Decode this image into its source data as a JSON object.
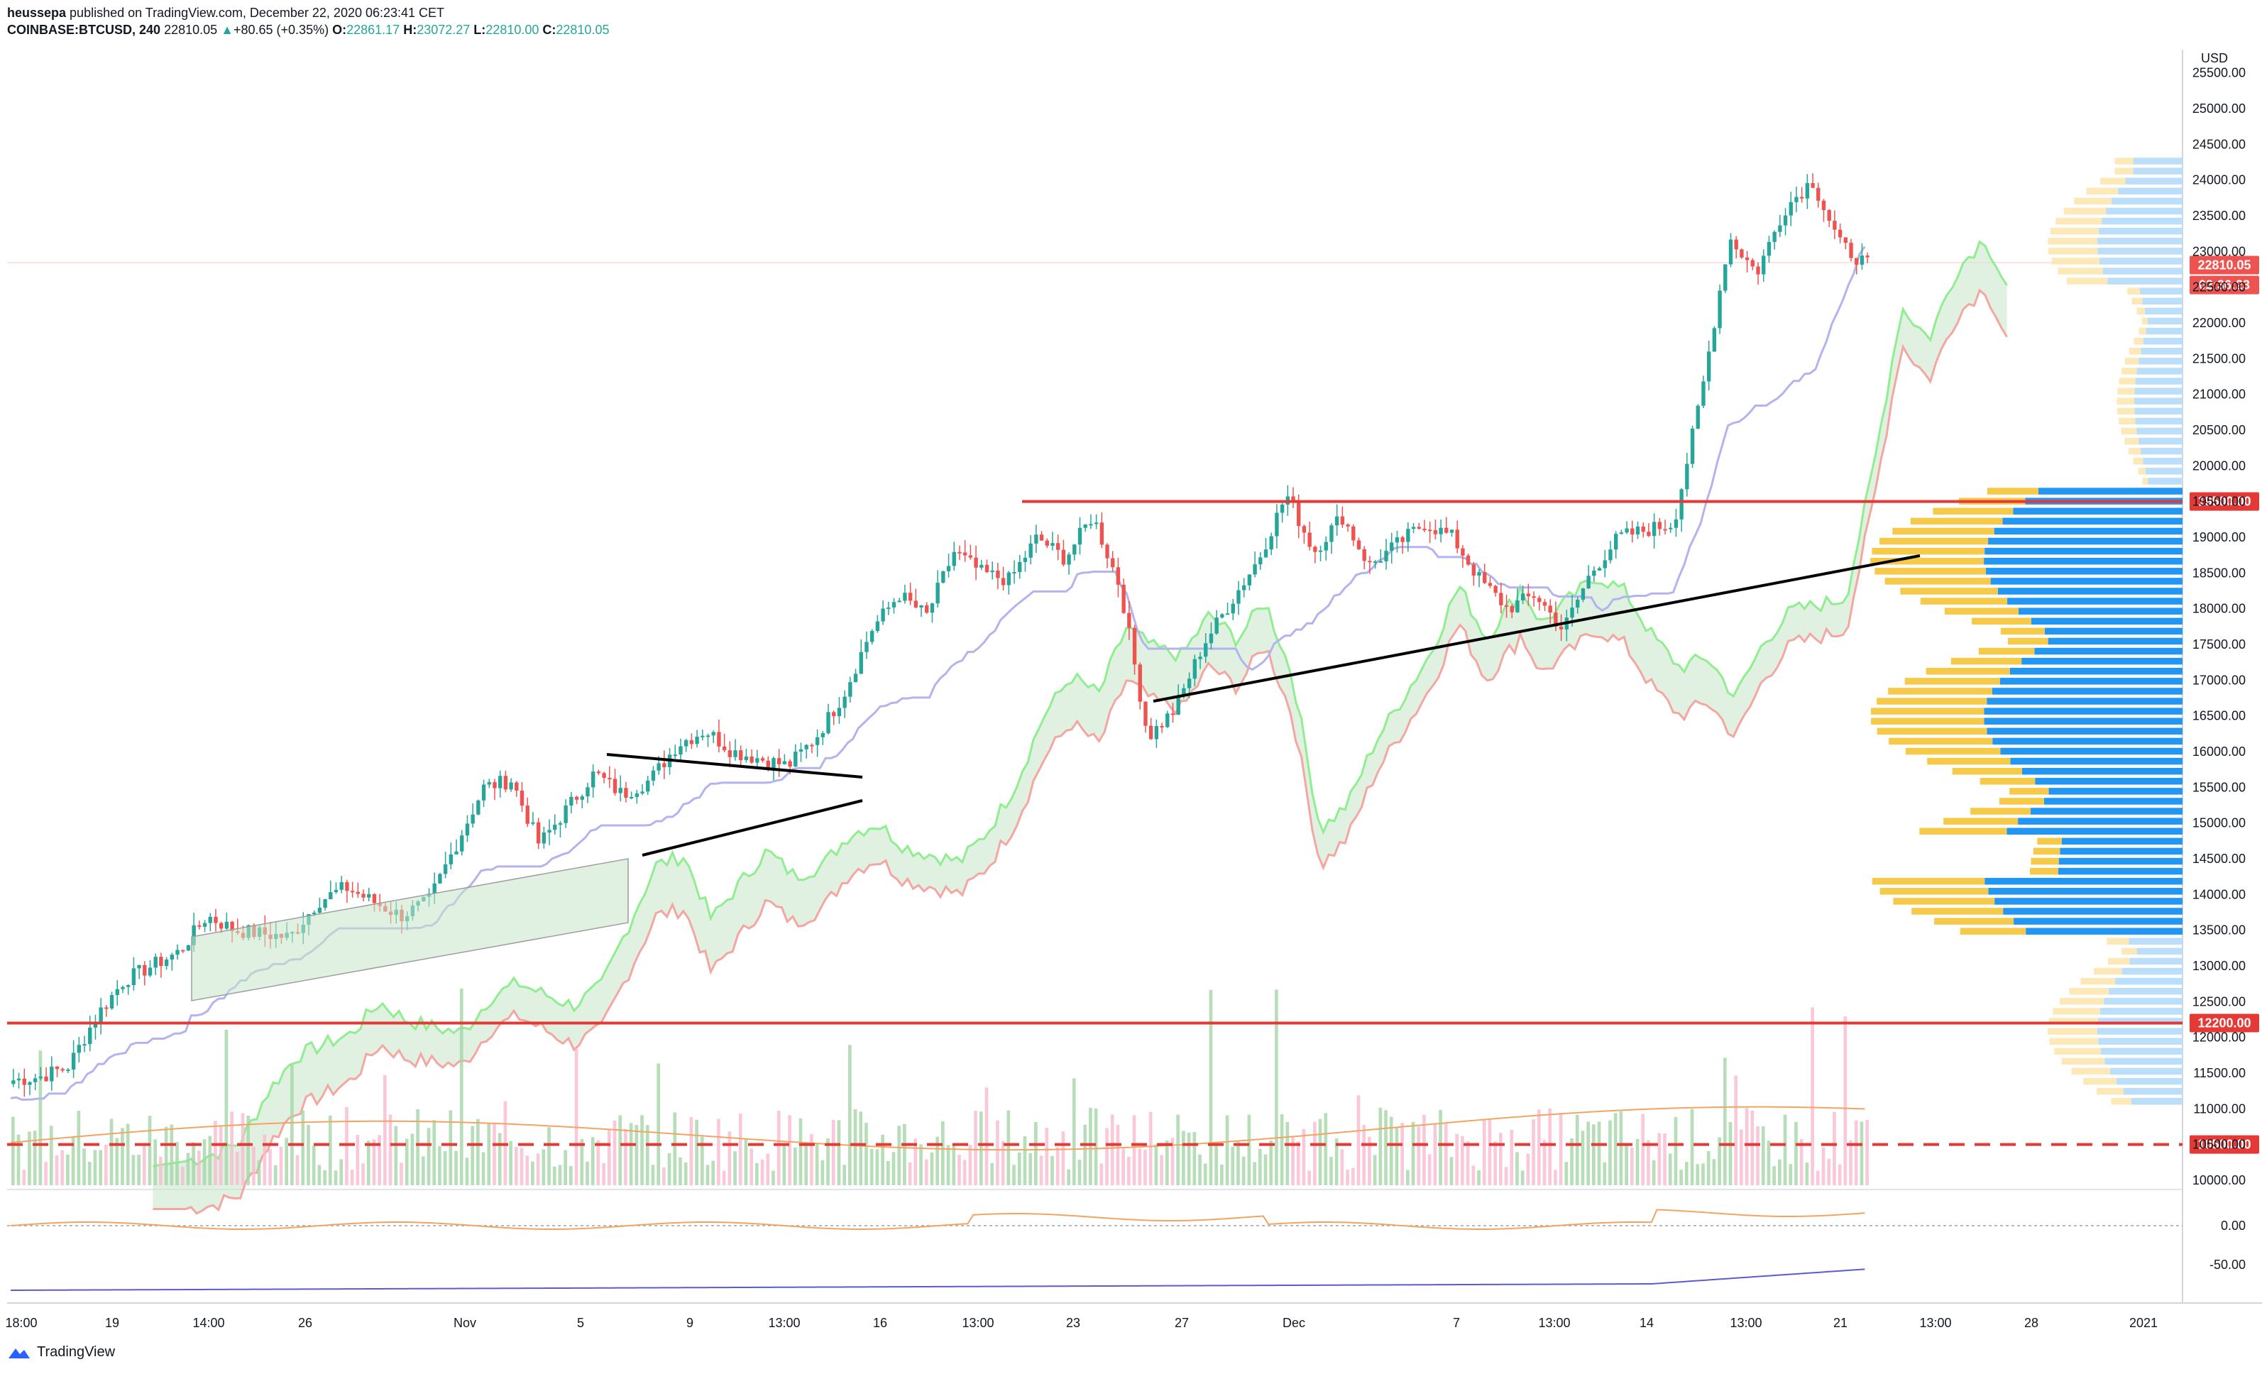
{
  "header": {
    "line1_user": "heussepa",
    "line1_rest": " published on TradingView.com, December 22, 2020 06:23:41 CET",
    "symbol": "COINBASE:BTCUSD, 240",
    "last": "22810.05",
    "change_arrow": "▲",
    "change": "+80.65 (+0.35%)",
    "o_label": "O:",
    "o": "22861.17",
    "h_label": "H:",
    "h": "23072.27",
    "l_label": "L:",
    "l": "22810.00",
    "c_label": "C:",
    "c": "22810.05"
  },
  "footer": {
    "brand": "TradingView"
  },
  "colors": {
    "up": "#26a69a",
    "down": "#ef5350",
    "red_line": "#e53935",
    "cloud_fill": "#c8e6c9",
    "kijun": "#b3b3f0",
    "span_a": "#90ee90",
    "span_b": "#f4a6a0",
    "vp_blue": "#2196f3",
    "vp_blue_light": "#bbdefb",
    "vp_yellow": "#f7c948",
    "vp_yellow_light": "#fde9b8",
    "ma_orange": "#f4a460",
    "osc_blue": "#5b5bd6"
  },
  "chart_data": {
    "type": "candlestick",
    "symbol": "COINBASE:BTCUSD",
    "interval": "240",
    "currency": "USD",
    "y_ticks": [
      10000,
      10500,
      11000,
      11500,
      12000,
      12500,
      13000,
      13500,
      14000,
      14500,
      15000,
      15500,
      16000,
      16500,
      17000,
      17500,
      18000,
      18500,
      19000,
      19500,
      20000,
      20500,
      21000,
      21500,
      22000,
      22500,
      23000,
      23500,
      24000,
      24500,
      25000,
      25500
    ],
    "y_tick_labels": [
      "10000.00",
      "10500.00",
      "11000.00",
      "11500.00",
      "12000.00",
      "12500.00",
      "13000.00",
      "13500.00",
      "14000.00",
      "14500.00",
      "15000.00",
      "15500.00",
      "16000.00",
      "16500.00",
      "17000.00",
      "17500.00",
      "18000.00",
      "18500.00",
      "19000.00",
      "19500.00",
      "20000.00",
      "20500.00",
      "21000.00",
      "21500.00",
      "22000.00",
      "22500.00",
      "23000.00",
      "23500.00",
      "24000.00",
      "24500.00",
      "25000.00",
      "25500.00"
    ],
    "ylim": [
      10000,
      25800
    ],
    "x_tick_labels": [
      "18:00",
      "19",
      "14:00",
      "26",
      "Nov",
      "5",
      "9",
      "13:00",
      "16",
      "13:00",
      "23",
      "27",
      "Dec",
      "7",
      "13:00",
      "14",
      "13:00",
      "21",
      "13:00",
      "28",
      "2021"
    ],
    "price_badges": [
      {
        "label": "22810.05",
        "value": 22810.05,
        "color": "#ef5350"
      },
      {
        "label": "02:36:23",
        "value": 22530,
        "color": "#ef5350"
      },
      {
        "label": "19500.00",
        "value": 19500,
        "color": "#e53935"
      },
      {
        "label": "12200.00",
        "value": 12200,
        "color": "#e53935"
      },
      {
        "label": "10500.00",
        "value": 10500,
        "color": "#e53935"
      }
    ],
    "horizontal_levels": [
      {
        "value": 19500,
        "style": "solid"
      },
      {
        "value": 12200,
        "style": "solid"
      },
      {
        "value": 10500,
        "style": "dashed"
      }
    ],
    "osc_ticks": [
      {
        "value": 0,
        "label": "0.00"
      },
      {
        "value": -50,
        "label": "-50.00"
      }
    ],
    "close_path": [
      11400,
      11450,
      11600,
      12300,
      12800,
      13000,
      13200,
      13700,
      13500,
      13450,
      13400,
      13900,
      14100,
      13900,
      13700,
      13900,
      14700,
      15500,
      15600,
      14700,
      15200,
      15700,
      15400,
      15600,
      16100,
      16300,
      16000,
      15900,
      15800,
      16200,
      16800,
      17700,
      18200,
      17900,
      18800,
      18500,
      18400,
      19000,
      18700,
      19300,
      18300,
      16200,
      16600,
      17500,
      18100,
      18700,
      19600,
      18800,
      19300,
      18600,
      18900,
      19200,
      19000,
      18400,
      18000,
      18200,
      17700,
      18500,
      19000,
      19100,
      19200,
      21000,
      23200,
      22700,
      23600,
      24000,
      23100,
      22810
    ],
    "volume_profile_rows": [
      {
        "price": 24000,
        "up": 0.3,
        "down": 0.5
      },
      {
        "price": 23000,
        "up": 0.6,
        "down": 0.7
      },
      {
        "price": 19500,
        "up": 1.0,
        "down": 0.8
      },
      {
        "price": 18500,
        "up": 0.95,
        "down": 0.9
      },
      {
        "price": 15500,
        "up": 0.85,
        "down": 0.8
      },
      {
        "price": 13800,
        "up": 0.8,
        "down": 0.9
      },
      {
        "price": 11500,
        "up": 0.3,
        "down": 0.4
      }
    ]
  }
}
